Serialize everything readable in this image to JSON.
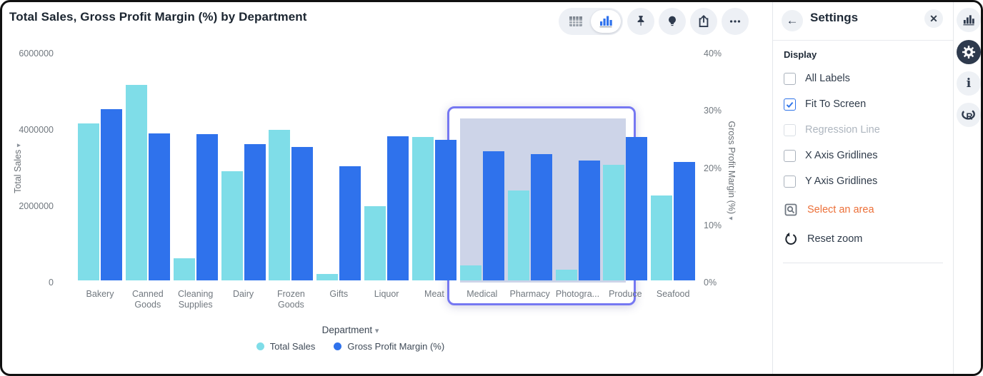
{
  "title": "Total Sales, Gross Profit Margin (%) by Department",
  "toolbar": {
    "view_toggle": {
      "selected": "chart-view",
      "options": [
        "table-view",
        "chart-view"
      ]
    },
    "buttons": [
      "pin",
      "insight-bulb",
      "share-export",
      "more-options"
    ]
  },
  "chart_data": {
    "type": "bar",
    "title": "Total Sales, Gross Profit Margin (%) by Department",
    "categories": [
      "Bakery",
      "Canned Goods",
      "Cleaning Supplies",
      "Dairy",
      "Frozen Goods",
      "Gifts",
      "Liquor",
      "Meat",
      "Medical",
      "Pharmacy",
      "Photogra...",
      "Produce",
      "Seafood"
    ],
    "x_axis": {
      "label": "Department"
    },
    "left_axis": {
      "label": "Total Sales",
      "range": [
        0,
        6000000
      ],
      "ticks": [
        "6000000",
        "4000000",
        "2000000",
        "0"
      ]
    },
    "right_axis": {
      "label": "Gross Profit Margin (%)",
      "range": [
        0,
        40
      ],
      "ticks": [
        "40%",
        "30%",
        "20%",
        "10%",
        "0%"
      ]
    },
    "series": [
      {
        "name": "Total Sales",
        "axis": "left",
        "color": "#7fdde8",
        "values": [
          4110000,
          5120000,
          585000,
          2860000,
          3940000,
          160000,
          1945000,
          3760000,
          400000,
          2360000,
          275000,
          3030000,
          2220000
        ]
      },
      {
        "name": "Gross Profit Margin (%)",
        "axis": "right",
        "color": "#2f72ec",
        "values": [
          29.9,
          25.7,
          25.6,
          23.8,
          23.3,
          20.0,
          25.2,
          24.5,
          22.6,
          22.1,
          20.9,
          25.0,
          20.7
        ]
      }
    ],
    "gridlines": false,
    "legend_position": "bottom"
  },
  "selection": {
    "from_category": "Medical",
    "to_category": "Produce",
    "start_index": 8,
    "end_index": 11,
    "fill_color": "#cdd4e8",
    "border_color": "#7678f2"
  },
  "settings": {
    "title": "Settings",
    "section": "Display",
    "checkboxes": [
      {
        "label": "All Labels",
        "checked": false,
        "disabled": false
      },
      {
        "label": "Fit To Screen",
        "checked": true,
        "disabled": false
      },
      {
        "label": "Regression Line",
        "checked": false,
        "disabled": true
      },
      {
        "label": "X Axis Gridlines",
        "checked": false,
        "disabled": false
      },
      {
        "label": "Y Axis Gridlines",
        "checked": false,
        "disabled": false
      }
    ],
    "actions": [
      {
        "label": "Select an area",
        "icon": "area-select-icon",
        "color": "#ec7039"
      },
      {
        "label": "Reset zoom",
        "icon": "reset-zoom-icon",
        "color": "#2f3b4a"
      }
    ]
  },
  "right_rail": {
    "icons": [
      "bar-chart",
      "settings-gear",
      "info",
      "r-script"
    ],
    "active": "settings-gear"
  },
  "colors": {
    "accent_blue": "#2f74e8",
    "check_blue": "#2f74e8",
    "title_text": "#1b2530",
    "axis_text": "#71787f"
  }
}
